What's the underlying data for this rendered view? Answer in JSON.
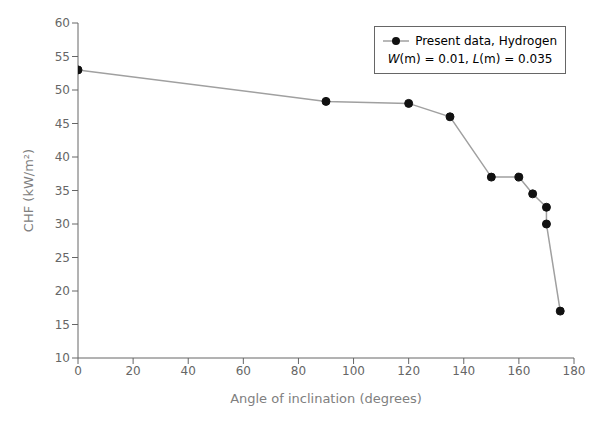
{
  "chart_data": {
    "type": "line",
    "xlabel": "Angle of inclination (degrees)",
    "ylabel": "CHF (kW/m²)",
    "subtitle": "W(m) = 0.01, L(m) = 0.035",
    "x": [
      0,
      90,
      120,
      135,
      150,
      160,
      165,
      170,
      170,
      175
    ],
    "series": [
      {
        "name": "Present data, Hydrogen",
        "color": "#a0a0a0",
        "marker": "circle",
        "colors": [
          "#111111",
          "#111111",
          "#111111",
          "#111111",
          "#111111",
          "#111111",
          "#111111",
          "#111111",
          "#111111",
          "#111111"
        ],
        "values": [
          53,
          48.3,
          48.0,
          46.0,
          37.0,
          37.0,
          34.5,
          32.5,
          30.0,
          17.0
        ]
      }
    ],
    "xlim": [
      0,
      180
    ],
    "ylim": [
      10,
      60
    ],
    "xticks": [
      0,
      20,
      40,
      60,
      80,
      100,
      120,
      140,
      160,
      180
    ],
    "yticks": [
      10,
      15,
      20,
      25,
      30,
      35,
      40,
      45,
      50,
      55,
      60
    ],
    "grid": false,
    "legend": "upper right"
  }
}
